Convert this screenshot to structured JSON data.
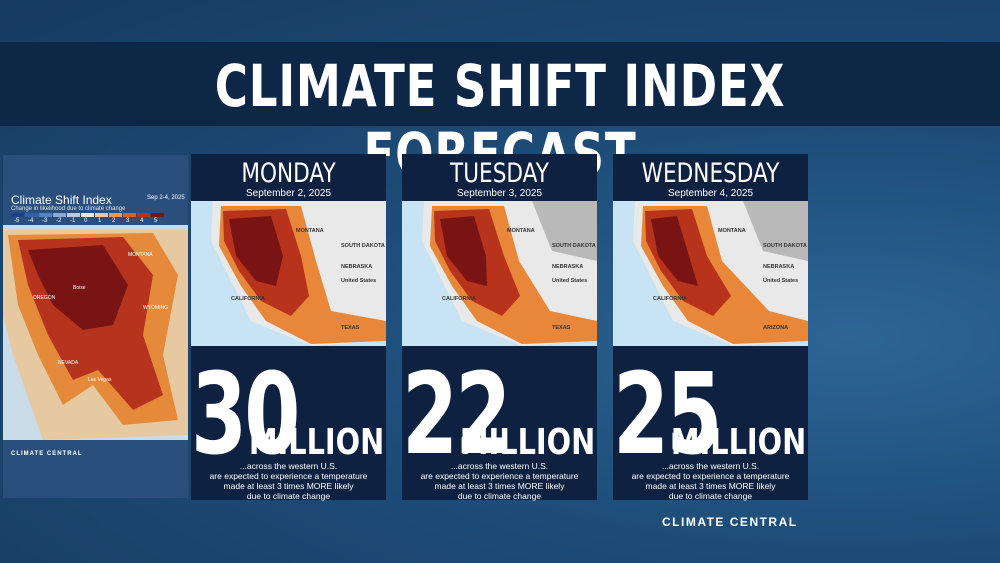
{
  "header": {
    "title": "CLIMATE SHIFT INDEX FORECAST"
  },
  "overview_map": {
    "title": "Climate Shift Index",
    "subtitle": "Change in likelihood due to climate change",
    "dates": "Sep 2-4, 2025",
    "legend": [
      "-5",
      "-4",
      "-3",
      "-2",
      "-1",
      "0",
      "1",
      "2",
      "3",
      "4",
      "5"
    ],
    "labels": [
      "MONTANA",
      "Boise",
      "OREGON",
      "WYOMING",
      "NEVADA",
      "Las Vegas"
    ],
    "brand": "CLIMATE CENTRAL"
  },
  "cards": [
    {
      "day": "MONDAY",
      "date": "September 2, 2025",
      "number": "30",
      "unit": "MILLION",
      "map_labels": [
        "MONTANA",
        "SOUTH DAKOTA",
        "NEBRASKA",
        "United States",
        "TEXAS",
        "CALIFORNIA"
      ],
      "description": [
        "...across the western U.S.",
        "are expected to experience a temperature",
        "made at least 3 times MORE likely",
        "due to climate change"
      ]
    },
    {
      "day": "TUESDAY",
      "date": "September 3, 2025",
      "number": "22",
      "unit": "MILLION",
      "map_labels": [
        "MONTANA",
        "SOUTH DAKOTA",
        "NEBRASKA",
        "United States",
        "TEXAS",
        "CALIFORNIA"
      ],
      "description": [
        "...across the western U.S.",
        "are expected to experience a temperature",
        "made at least 3 times MORE likely",
        "due to climate change"
      ]
    },
    {
      "day": "WEDNESDAY",
      "date": "September 4, 2025",
      "number": "25",
      "unit": "MILLION",
      "map_labels": [
        "MONTANA",
        "SOUTH DAKOTA",
        "NEBRASKA",
        "United States",
        "ARIZONA",
        "CALIFORNIA"
      ],
      "description": [
        "...across the western U.S.",
        "are expected to experience a temperature",
        "made at least 3 times MORE likely",
        "due to climate change"
      ]
    }
  ],
  "footer": {
    "brand": "CLIMATE CENTRAL"
  }
}
